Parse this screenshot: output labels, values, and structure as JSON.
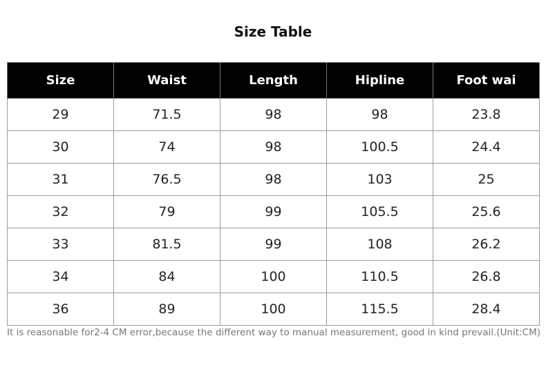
{
  "header": {
    "title": "Size Table"
  },
  "table": {
    "headers": [
      "Size",
      "Waist",
      "Length",
      "Hipline",
      "Foot wai"
    ],
    "rows": [
      [
        29,
        71.5,
        98,
        98,
        23.8
      ],
      [
        30,
        74,
        98,
        100.5,
        24.4
      ],
      [
        31,
        76.5,
        98,
        103,
        25
      ],
      [
        32,
        79,
        99,
        105.5,
        25.6
      ],
      [
        33,
        81.5,
        99,
        108,
        26.2
      ],
      [
        34,
        84,
        100,
        110.5,
        26.8
      ],
      [
        36,
        89,
        100,
        115.5,
        28.4
      ]
    ]
  },
  "footnote": "It is reasonable for2-4 CM error,because the different way to manual measurement, good in kind prevail.(Unit:CM)"
}
